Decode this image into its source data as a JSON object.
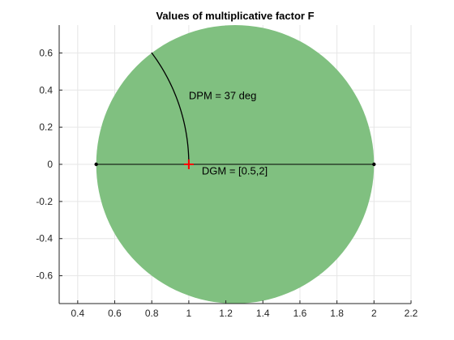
{
  "chart_data": {
    "type": "scatter",
    "title": "Values of multiplicative factor F",
    "xlabel": "",
    "ylabel": "",
    "xlim": [
      0.3,
      2.2
    ],
    "ylim": [
      -0.75,
      0.75
    ],
    "grid": true,
    "x_ticks": [
      0.4,
      0.6,
      0.8,
      1,
      1.2,
      1.4,
      1.6,
      1.8,
      2,
      2.2
    ],
    "y_ticks": [
      0.6,
      0.4,
      0.2,
      0,
      -0.2,
      -0.4,
      -0.6
    ],
    "x_tick_labels": [
      "0.4",
      "0.6",
      "0.8",
      "1",
      "1.2",
      "1.4",
      "1.6",
      "1.8",
      "2",
      "2.2"
    ],
    "y_tick_labels": [
      "0.6",
      "0.4",
      "0.2",
      "0",
      "-0.2",
      "-0.4",
      "-0.6"
    ],
    "disk": {
      "center": [
        1.25,
        0
      ],
      "radius": 0.75,
      "color": "#80c080"
    },
    "gain_margin_range": [
      0.5,
      2
    ],
    "phase_margin_deg": 37,
    "nominal_point": [
      1,
      0
    ],
    "colors": {
      "segment": "#000000",
      "arc": "#000000",
      "nominal": "#ff0000",
      "grid": "#e6e6e6"
    },
    "annotations": [
      {
        "text": "DPM = 37 deg",
        "x": 1.0,
        "y": 0.35
      },
      {
        "text": "DGM = [0.5,2]",
        "x": 1.07,
        "y": -0.055
      }
    ]
  }
}
